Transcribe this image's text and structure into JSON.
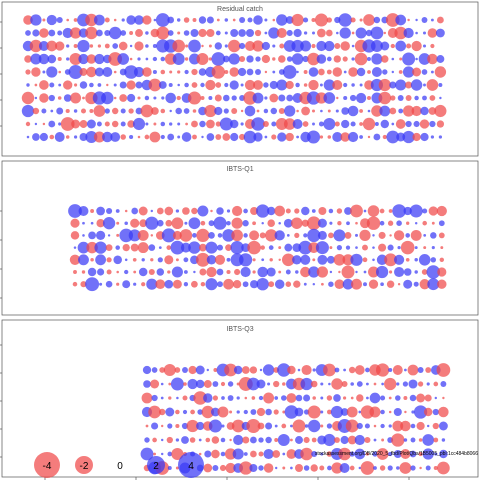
{
  "chart_data": [
    {
      "type": "bubble",
      "title": "Residual catch",
      "grid": false,
      "n_rows": 10,
      "rows": [
        "-+-++--+-+--+++-++++--++-+-++++-++-+---++---++-+-+++-",
        "++-+++-+-++++--+--+-++--+++++-++-++++--++-+++---+++-+",
        "+-+--+-+---+-+-++++--+--++-+--++-+++-++--+-+++-+--+-",
        "-+++-+-+-++-+-++++-+-+--+++-++---+++-++--+-++-+-+++-+",
        "--++-++--++-+++-+---+-++---+++-++++-+---+-+-+++-+-++-",
        "+--++--+++-++-++-++++-+--+++--+++-+--++-+++-+-++-++-+",
        "-+-+-+---++--+-++++-+--+-+++-++-+++-+-+-+++-+--+-++-+",
        "+-+++-+---+-+-+---+++-+-++--+-++-+---+-+++-+-+-+--+--",
        "-+-++---++--+-++-+++--+--+++-+-+--+-+++-++--+++-++-+-",
        "+++-+-+++-++-+---++++-++--+-+++-+-+++--+-++-+-+++-+++"
      ]
    },
    {
      "type": "bubble",
      "title": "IBTS-Q1",
      "grid": false,
      "n_rows": 7,
      "rows": [
        "++-+++-+-+--+--+-++-+-++---++-+-+-+---++++--",
        "-++-+-+--++--++-+++-+-+-++---++-+---+-+-+--+",
        "-++++-++---+--+-+++-+---++-+++-+-+-+---+-++-",
        "++-+-+---++-+++-++-++--+-+++-+-+++-+-++-+-+-",
        "-+-+-++-+-+--++-+-+++-+---++-++--+-++-+-+++-",
        "--++--+-+-+-+++--+--+-++-++-+-+--++-+-+++-+-",
        "--+++-++-+-+-+--++--+++-+--++-+-+-+-+--++-+-"
      ]
    },
    {
      "type": "bubble",
      "title": "IBTS-Q3",
      "grid": false,
      "n_rows": 8,
      "rows": [
        "++---+-++-+-+--++-+-+-++-++--+--+-+-+-+-",
        "+-+-+-++-+-+--+++--+-+-++--+++-+-+++-+-+",
        "-++-+-+-+-+++--+-++-++-+-+---+++-+-+--+-",
        "+--+-+-+-+--+++-+--+++-+-++-+--+-+-++-+-",
        "-+-+-+-+-++--+--++-+-++-+-+-++-++--+-+-+",
        "+-+-++-+--+-+-+++-+-+--++-+-+-+-+-++-+-+",
        "+-++--+-+-+-++--+-+-+-++-+-++-+-++-+-+++",
        "-+-+-+-+-+--+-++-+-+-+--+-+-+-+-++-+-+--"
      ]
    }
  ],
  "legend": {
    "placement": "bottom-left",
    "items": [
      {
        "label": "-4",
        "value": -4
      },
      {
        "label": "-2",
        "value": -2
      },
      {
        "label": "0",
        "value": 0
      },
      {
        "label": "2",
        "value": 2
      },
      {
        "label": "4",
        "value": 4
      }
    ]
  },
  "stamp": "stockassessment.org/DB/2020_5_fbd/Plot/Qbs/1B5005_pbl:1cc484b8066",
  "colors": {
    "negative": "#f04a4a",
    "positive": "#3a3af5",
    "frame": "#555555",
    "background": "#ffffff"
  }
}
